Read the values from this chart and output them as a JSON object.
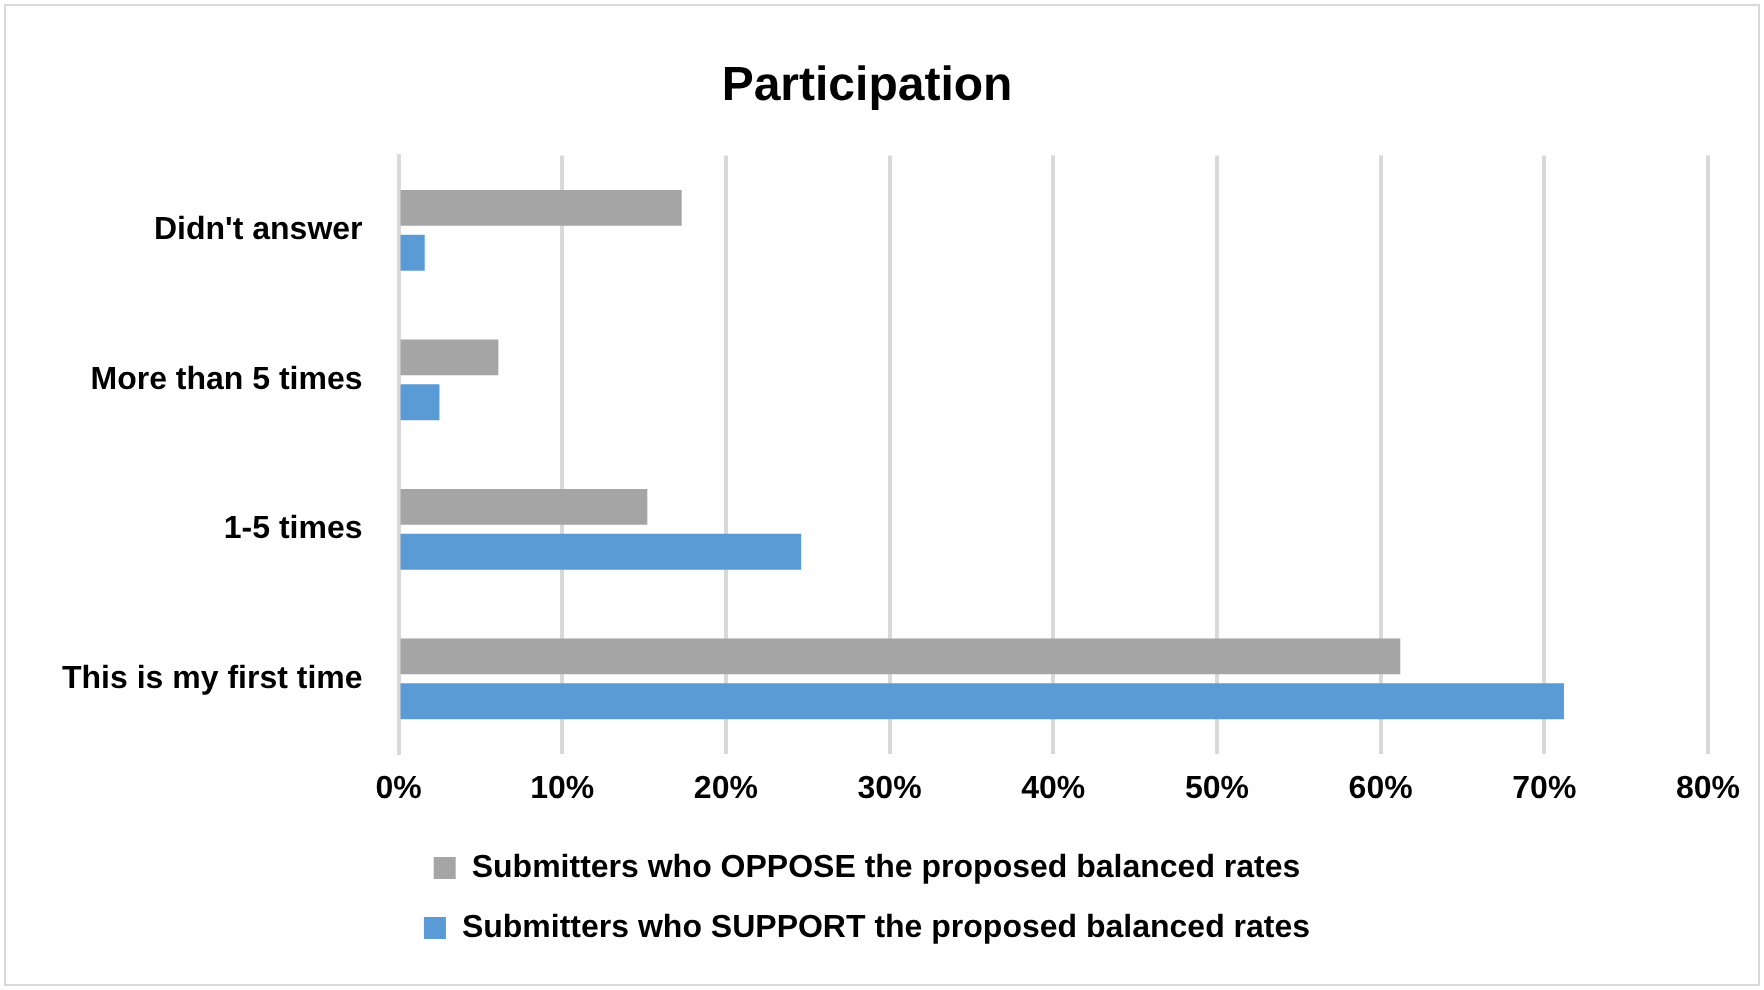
{
  "chart_data": {
    "type": "bar",
    "orientation": "horizontal",
    "title": "Participation",
    "categories": [
      "Didn't answer",
      "More than 5 times",
      "1-5 times",
      "This is my first time"
    ],
    "series": [
      {
        "name": "Submitters who OPPOSE the proposed balanced rates",
        "color": "#a5a5a5",
        "values": [
          17.3,
          6.1,
          15.2,
          61.2
        ]
      },
      {
        "name": "Submitters who SUPPORT the proposed balanced rates",
        "color": "#5b9bd5",
        "values": [
          1.6,
          2.5,
          24.6,
          71.2
        ]
      }
    ],
    "xlim": [
      0,
      80
    ],
    "xticks": [
      {
        "value": 0,
        "label": "0%"
      },
      {
        "value": 10,
        "label": "10%"
      },
      {
        "value": 20,
        "label": "20%"
      },
      {
        "value": 30,
        "label": "30%"
      },
      {
        "value": 40,
        "label": "40%"
      },
      {
        "value": 50,
        "label": "50%"
      },
      {
        "value": 60,
        "label": "60%"
      },
      {
        "value": 70,
        "label": "70%"
      },
      {
        "value": 80,
        "label": "80%"
      }
    ],
    "grid": "x",
    "legend": "bottom"
  }
}
